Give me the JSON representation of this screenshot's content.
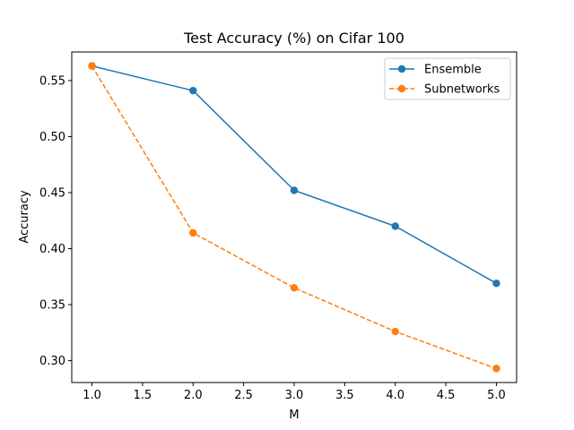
{
  "chart_data": {
    "type": "line",
    "title": "Test Accuracy (%) on Cifar 100",
    "xlabel": "M",
    "ylabel": "Accuracy",
    "xlim": [
      0.8,
      5.2
    ],
    "ylim": [
      0.2805,
      0.5755
    ],
    "xticks": [
      1.0,
      1.5,
      2.0,
      2.5,
      3.0,
      3.5,
      4.0,
      4.5,
      5.0
    ],
    "xtick_labels": [
      "1.0",
      "1.5",
      "2.0",
      "2.5",
      "3.0",
      "3.5",
      "4.0",
      "4.5",
      "5.0"
    ],
    "yticks": [
      0.3,
      0.35,
      0.4,
      0.45,
      0.5,
      0.55
    ],
    "ytick_labels": [
      "0.30",
      "0.35",
      "0.40",
      "0.45",
      "0.50",
      "0.55"
    ],
    "grid": false,
    "legend_position": "top-right",
    "x": [
      1,
      2,
      3,
      4,
      5
    ],
    "series": [
      {
        "name": "Ensemble",
        "values": [
          0.563,
          0.541,
          0.452,
          0.42,
          0.369
        ],
        "color": "#1f77b4",
        "style": "solid",
        "marker": "circle"
      },
      {
        "name": "Subnetworks",
        "values": [
          0.563,
          0.414,
          0.365,
          0.326,
          0.293
        ],
        "color": "#ff7f0e",
        "style": "dashed",
        "marker": "circle"
      }
    ]
  }
}
